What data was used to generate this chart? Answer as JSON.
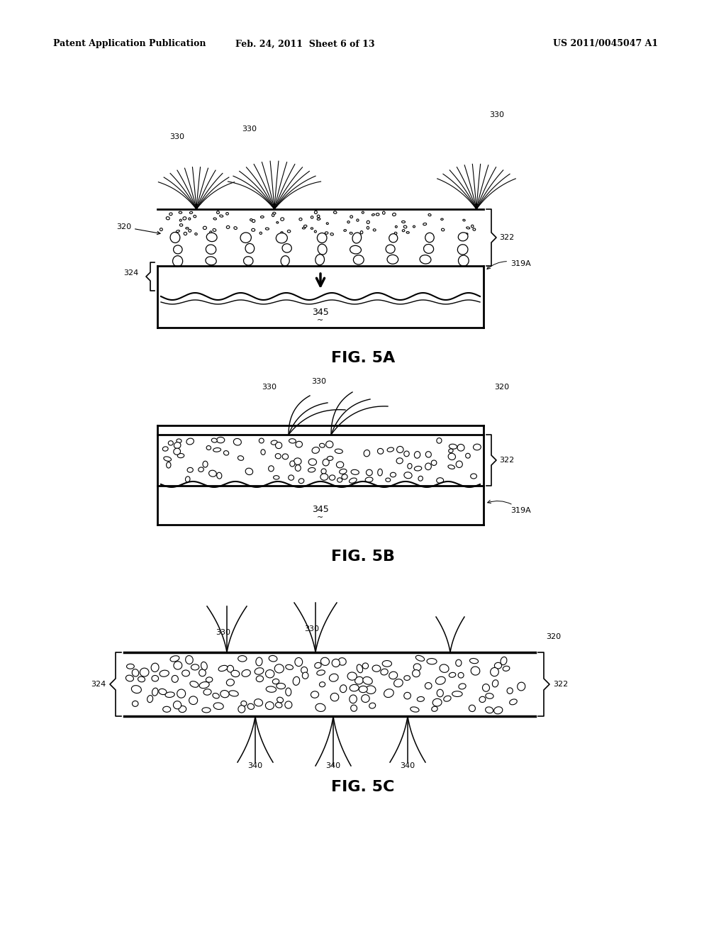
{
  "header_left": "Patent Application Publication",
  "header_mid": "Feb. 24, 2011  Sheet 6 of 13",
  "header_right": "US 2011/0045047 A1",
  "fig5a_label": "FIG. 5A",
  "fig5b_label": "FIG. 5B",
  "fig5c_label": "FIG. 5C",
  "bg_color": "#ffffff",
  "line_color": "#000000"
}
